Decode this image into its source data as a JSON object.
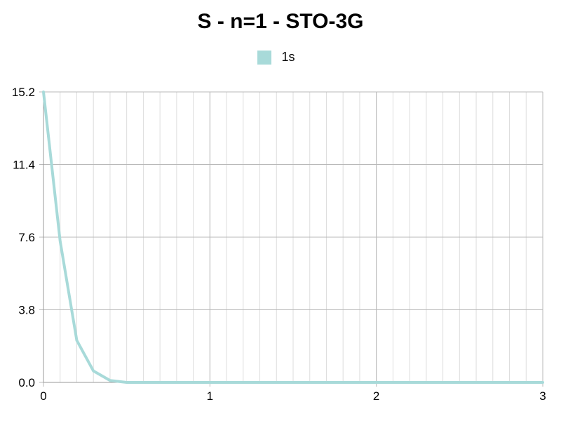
{
  "chart_data": {
    "type": "line",
    "title": "S - n=1 - STO-3G",
    "xlabel": "",
    "ylabel": "",
    "xlim": [
      0,
      3
    ],
    "ylim": [
      0,
      15.2
    ],
    "x_ticks": [
      0,
      1,
      2,
      3
    ],
    "x_tick_labels": [
      "0",
      "1",
      "2",
      "3"
    ],
    "y_ticks": [
      0,
      3.8,
      7.6,
      11.4,
      15.2
    ],
    "y_tick_labels": [
      "0.0",
      "3.8",
      "7.6",
      "11.4",
      "15.2"
    ],
    "x_minor_step": 0.1,
    "grid": true,
    "legend_position": "top-center",
    "series": [
      {
        "name": "1s",
        "color": "#a8dad9",
        "x": [
          0,
          0.1,
          0.2,
          0.3,
          0.4,
          0.5,
          0.6,
          0.7,
          0.8,
          0.9,
          1.0,
          1.1,
          1.2,
          1.3,
          1.4,
          1.5,
          1.6,
          1.7,
          1.8,
          1.9,
          2.0,
          2.1,
          2.2,
          2.3,
          2.4,
          2.5,
          2.6,
          2.7,
          2.8,
          2.9,
          3.0
        ],
        "y": [
          15.2,
          7.4,
          2.2,
          0.6,
          0.1,
          0.0,
          0.0,
          0.0,
          0.0,
          0.0,
          0.0,
          0.0,
          0.0,
          0.0,
          0.0,
          0.0,
          0.0,
          0.0,
          0.0,
          0.0,
          0.0,
          0.0,
          0.0,
          0.0,
          0.0,
          0.0,
          0.0,
          0.0,
          0.0,
          0.0,
          0.0
        ]
      }
    ]
  }
}
